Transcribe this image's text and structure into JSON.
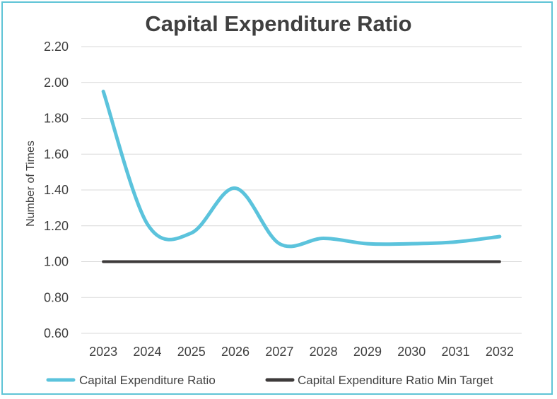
{
  "chart_data": {
    "type": "line",
    "title": "Capital Expenditure Ratio",
    "xlabel": "",
    "ylabel": "Number  of Times",
    "categories": [
      "2023",
      "2024",
      "2025",
      "2026",
      "2027",
      "2028",
      "2029",
      "2030",
      "2031",
      "2032"
    ],
    "ylim": [
      0.6,
      2.2
    ],
    "yticks": [
      "0.60",
      "0.80",
      "1.00",
      "1.20",
      "1.40",
      "1.60",
      "1.80",
      "2.00",
      "2.20"
    ],
    "grid": true,
    "legend_position": "bottom",
    "series": [
      {
        "name": "Capital Expenditure Ratio",
        "color": "#5bc3dc",
        "smooth": true,
        "values": [
          1.95,
          1.21,
          1.16,
          1.41,
          1.1,
          1.13,
          1.1,
          1.1,
          1.11,
          1.14
        ]
      },
      {
        "name": "Capital Expenditure Ratio Min Target",
        "color": "#3d3a3a",
        "smooth": false,
        "values": [
          1.0,
          1.0,
          1.0,
          1.0,
          1.0,
          1.0,
          1.0,
          1.0,
          1.0,
          1.0
        ]
      }
    ]
  }
}
